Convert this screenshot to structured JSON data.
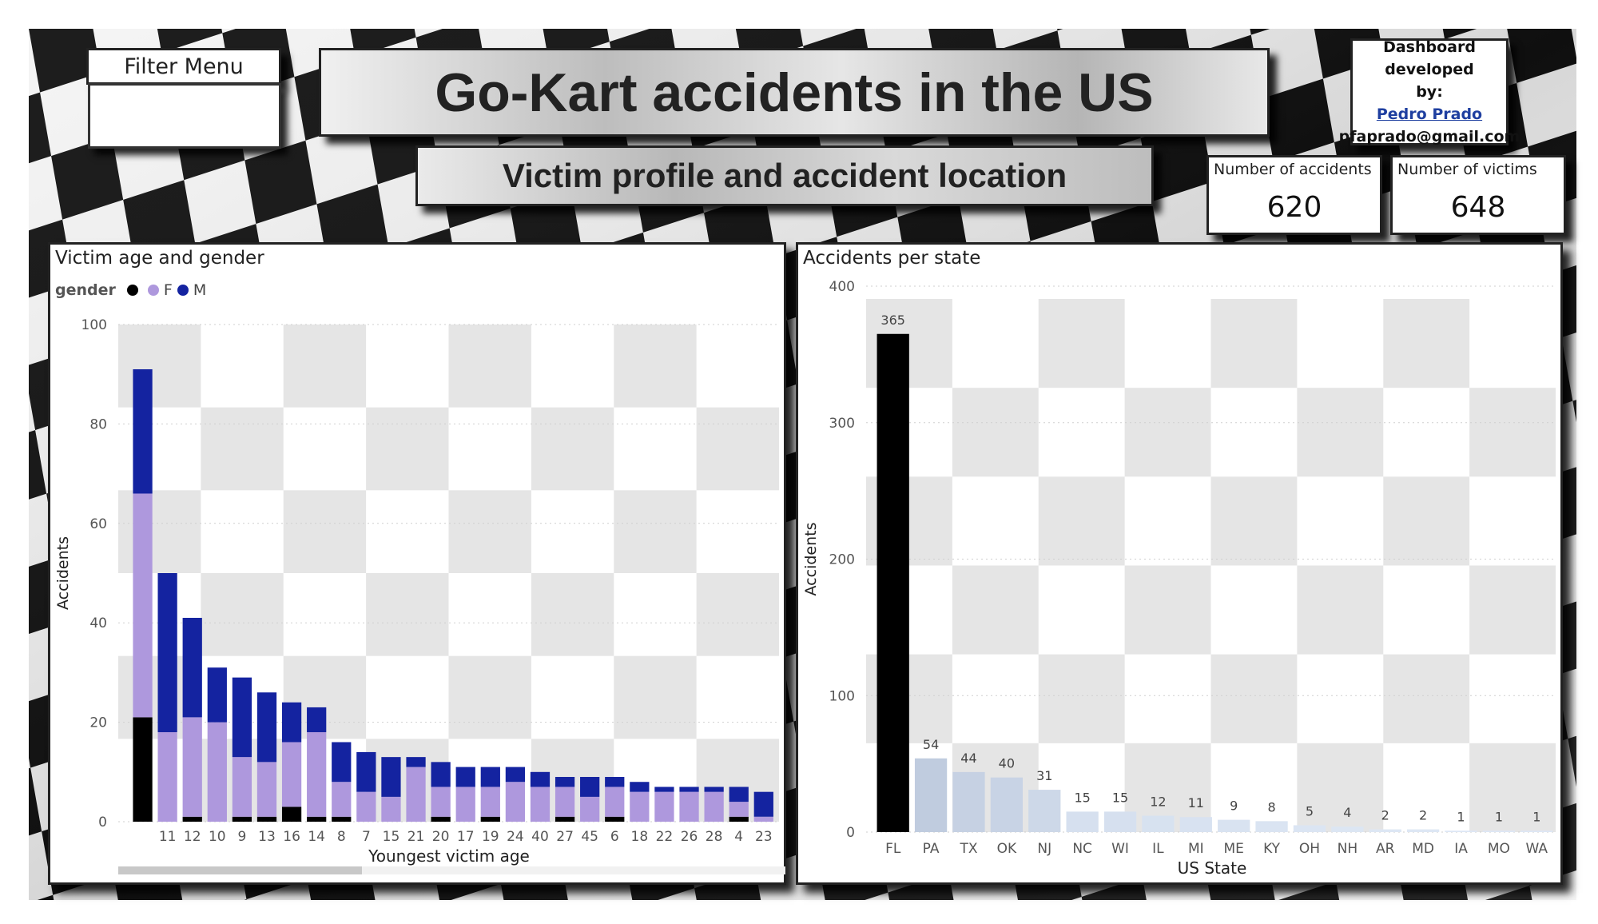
{
  "header": {
    "title": "Go-Kart accidents in the US",
    "subtitle": "Victim profile and accident location"
  },
  "filter": {
    "label": "Filter Menu"
  },
  "developer": {
    "line1": "Dashboard developed",
    "line2": "by:",
    "name": "Pedro Prado",
    "email": "pfaprado@gmail.com"
  },
  "kpis": [
    {
      "label": "Number of accidents",
      "value": "620"
    },
    {
      "label": "Number of victims",
      "value": "648"
    }
  ],
  "colors": {
    "female": "#ae98dd",
    "male": "#1423a0",
    "unknown": "#000000",
    "checker": "#e5e5e5"
  },
  "chart_data": [
    {
      "type": "bar",
      "stacked": true,
      "title": "Victim age and gender",
      "legend_title": "gender",
      "legend_position": "top-left",
      "xlabel": "Youngest victim age",
      "ylabel": "Accidents",
      "ylim": [
        0,
        100
      ],
      "yticks": [
        0,
        20,
        40,
        60,
        80,
        100
      ],
      "categories": [
        "",
        "11",
        "12",
        "10",
        "9",
        "13",
        "16",
        "14",
        "8",
        "7",
        "15",
        "21",
        "20",
        "17",
        "19",
        "24",
        "40",
        "27",
        "45",
        "6",
        "18",
        "22",
        "26",
        "28",
        "4",
        "23"
      ],
      "series": [
        {
          "name": "",
          "color": "#000000",
          "values": [
            21,
            0,
            1,
            0,
            1,
            1,
            3,
            1,
            1,
            0,
            0,
            0,
            1,
            0,
            1,
            0,
            0,
            1,
            0,
            1,
            0,
            0,
            0,
            0,
            1,
            0
          ]
        },
        {
          "name": "F",
          "color": "#ae98dd",
          "values": [
            45,
            18,
            20,
            20,
            12,
            11,
            13,
            17,
            7,
            6,
            5,
            11,
            6,
            7,
            6,
            8,
            7,
            6,
            5,
            6,
            6,
            6,
            6,
            6,
            3,
            1
          ]
        },
        {
          "name": "M",
          "color": "#1423a0",
          "values": [
            25,
            32,
            20,
            11,
            16,
            14,
            8,
            5,
            8,
            8,
            8,
            2,
            5,
            4,
            4,
            3,
            3,
            2,
            4,
            2,
            2,
            1,
            1,
            1,
            3,
            5
          ]
        }
      ]
    },
    {
      "type": "bar",
      "title": "Accidents per state",
      "xlabel": "US State",
      "ylabel": "Accidents",
      "ylim": [
        0,
        400
      ],
      "yticks": [
        0,
        100,
        200,
        300,
        400
      ],
      "categories": [
        "FL",
        "PA",
        "TX",
        "OK",
        "NJ",
        "NC",
        "WI",
        "IL",
        "MI",
        "ME",
        "KY",
        "OH",
        "NH",
        "AR",
        "MD",
        "IA",
        "MO",
        "WA"
      ],
      "values": [
        365,
        54,
        44,
        40,
        31,
        15,
        15,
        12,
        11,
        9,
        8,
        5,
        4,
        2,
        2,
        1,
        1,
        1
      ],
      "data_labels": [
        "365",
        "54",
        "44",
        "40",
        "31",
        "15",
        "15",
        "12",
        "11",
        "9",
        "8",
        "5",
        "4",
        "2",
        "2",
        "1",
        "1",
        "1"
      ]
    }
  ]
}
